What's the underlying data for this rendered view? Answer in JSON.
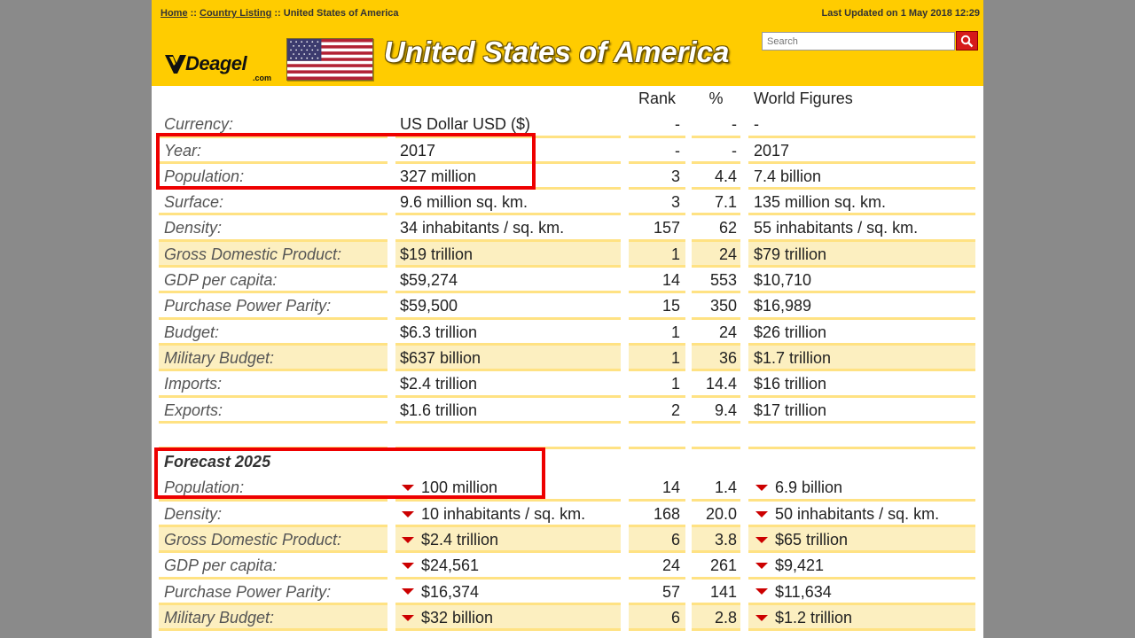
{
  "header": {
    "breadcrumb": {
      "home": "Home",
      "sep1": "::",
      "listing": "Country Listing",
      "sep2": "::",
      "current": "United States of America"
    },
    "last_updated": "Last Updated on 1 May 2018 12:29",
    "logo_text": "Deagel",
    "logo_sub": ".com",
    "title": "United States of America",
    "search_placeholder": "Search",
    "search_icon": "magnifier-icon"
  },
  "columns": {
    "label": "",
    "value": "",
    "rank": "Rank",
    "pct": "%",
    "world": "World Figures"
  },
  "current_rows": [
    {
      "label": "Currency:",
      "value": "US Dollar USD ($)",
      "rank": "-",
      "pct": "-",
      "world": "-",
      "shaded": false
    },
    {
      "label": "Year:",
      "value": "2017",
      "rank": "-",
      "pct": "-",
      "world": "2017",
      "shaded": false
    },
    {
      "label": "Population:",
      "value": "327 million",
      "rank": "3",
      "pct": "4.4",
      "world": "7.4 billion",
      "shaded": false
    },
    {
      "label": "Surface:",
      "value": "9.6 million sq. km.",
      "rank": "3",
      "pct": "7.1",
      "world": "135 million sq. km.",
      "shaded": false
    },
    {
      "label": "Density:",
      "value": "34 inhabitants / sq. km.",
      "rank": "157",
      "pct": "62",
      "world": "55 inhabitants / sq. km.",
      "shaded": false
    },
    {
      "label": "Gross Domestic Product:",
      "value": "$19 trillion",
      "rank": "1",
      "pct": "24",
      "world": "$79 trillion",
      "shaded": true
    },
    {
      "label": "GDP per capita:",
      "value": "$59,274",
      "rank": "14",
      "pct": "553",
      "world": "$10,710",
      "shaded": false
    },
    {
      "label": "Purchase Power Parity:",
      "value": "$59,500",
      "rank": "15",
      "pct": "350",
      "world": "$16,989",
      "shaded": false
    },
    {
      "label": "Budget:",
      "value": "$6.3 trillion",
      "rank": "1",
      "pct": "24",
      "world": "$26 trillion",
      "shaded": false
    },
    {
      "label": "Military Budget:",
      "value": "$637 billion",
      "rank": "1",
      "pct": "36",
      "world": "$1.7 trillion",
      "shaded": true
    },
    {
      "label": "Imports:",
      "value": "$2.4 trillion",
      "rank": "1",
      "pct": "14.4",
      "world": "$16 trillion",
      "shaded": false
    },
    {
      "label": "Exports:",
      "value": "$1.6 trillion",
      "rank": "2",
      "pct": "9.4",
      "world": "$17 trillion",
      "shaded": false
    }
  ],
  "forecast": {
    "title": "Forecast 2025",
    "arrow_icon": "down-arrow-icon",
    "rows": [
      {
        "label": "Population:",
        "value": "100 million",
        "rank": "14",
        "pct": "1.4",
        "world": "6.9 billion",
        "shaded": false
      },
      {
        "label": "Density:",
        "value": "10 inhabitants / sq. km.",
        "rank": "168",
        "pct": "20.0",
        "world": "50 inhabitants / sq. km.",
        "shaded": false
      },
      {
        "label": "Gross Domestic Product:",
        "value": "$2.4 trillion",
        "rank": "6",
        "pct": "3.8",
        "world": "$65 trillion",
        "shaded": true
      },
      {
        "label": "GDP per capita:",
        "value": "$24,561",
        "rank": "24",
        "pct": "261",
        "world": "$9,421",
        "shaded": false
      },
      {
        "label": "Purchase Power Parity:",
        "value": "$16,374",
        "rank": "57",
        "pct": "141",
        "world": "$11,634",
        "shaded": false
      },
      {
        "label": "Military Budget:",
        "value": "$32 billion",
        "rank": "6",
        "pct": "2.8",
        "world": "$1.2 trillion",
        "shaded": true
      }
    ]
  },
  "colors": {
    "header_bg": "#ffcc00",
    "row_shade": "#fcefc0",
    "row_rule": "#ffe283",
    "highlight": "#ee0000",
    "down_arrow": "#cc0000"
  }
}
